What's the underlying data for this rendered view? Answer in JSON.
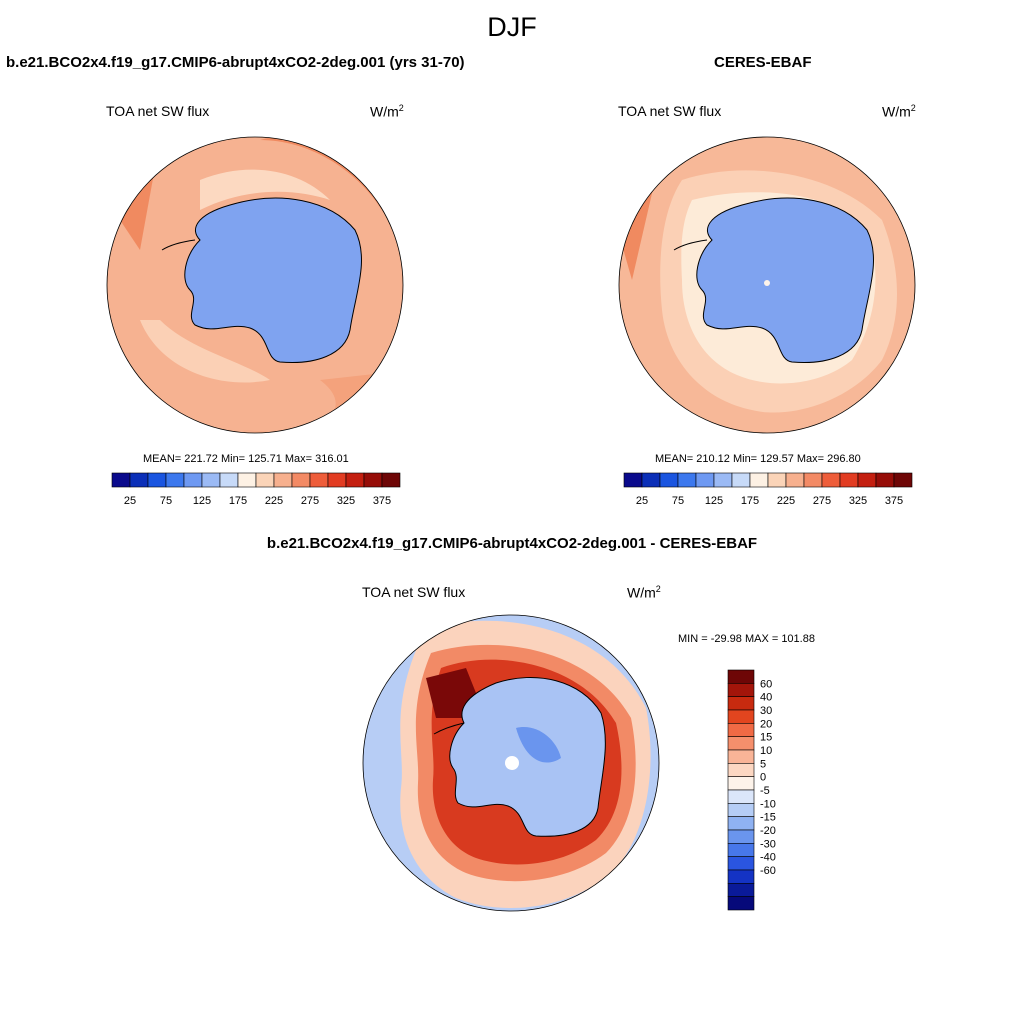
{
  "figure": {
    "title": "DJF"
  },
  "panels": [
    {
      "case_title": "b.e21.BCO2x4.f19_g17.CMIP6-abrupt4xCO2-2deg.001 (yrs 31-70)",
      "variable": "TOA net SW flux",
      "units": "W/m",
      "units_sup": "2",
      "stats": {
        "mean": "221.72",
        "min": "125.71",
        "max": "316.01"
      },
      "stats_text": "MEAN= 221.72  Min= 125.71  Max= 316.01"
    },
    {
      "case_title": "CERES-EBAF",
      "variable": "TOA net SW flux",
      "units": "W/m",
      "units_sup": "2",
      "stats": {
        "mean": "210.12",
        "min": "129.57",
        "max": "296.80"
      },
      "stats_text": "MEAN= 210.12  Min= 129.57  Max= 296.80"
    },
    {
      "case_title": "b.e21.BCO2x4.f19_g17.CMIP6-abrupt4xCO2-2deg.001 - CERES-EBAF",
      "variable": "TOA net SW flux",
      "units": "W/m",
      "units_sup": "2",
      "stats": {
        "min": "-29.98",
        "max": "101.88"
      },
      "stats_text": "MIN = -29.98 MAX = 101.88"
    }
  ],
  "chart_data": [
    {
      "type": "heatmap",
      "projection": "south-polar stereographic",
      "title": "b.e21.BCO2x4.f19_g17.CMIP6-abrupt4xCO2-2deg.001 (yrs 31-70)",
      "field": "TOA net SW flux",
      "units": "W/m2",
      "contour_levels": [
        25,
        50,
        75,
        100,
        125,
        150,
        175,
        200,
        225,
        250,
        275,
        300,
        325,
        350,
        375
      ],
      "colorbar_labels": [
        "25",
        "75",
        "125",
        "175",
        "225",
        "275",
        "325",
        "375"
      ],
      "colorbar_colors": [
        "#0a0a8c",
        "#0b2fb8",
        "#1a55e0",
        "#3c78ee",
        "#6e99f2",
        "#9bbaf5",
        "#c7daf8",
        "#fdf1e4",
        "#fbd4b8",
        "#f7b08e",
        "#f38a65",
        "#ee5d3a",
        "#e23c22",
        "#c41f10",
        "#960d08",
        "#6e0606"
      ],
      "mean": 221.72,
      "min": 125.71,
      "max": 316.01
    },
    {
      "type": "heatmap",
      "projection": "south-polar stereographic",
      "title": "CERES-EBAF",
      "field": "TOA net SW flux",
      "units": "W/m2",
      "contour_levels": [
        25,
        50,
        75,
        100,
        125,
        150,
        175,
        200,
        225,
        250,
        275,
        300,
        325,
        350,
        375
      ],
      "colorbar_labels": [
        "25",
        "75",
        "125",
        "175",
        "225",
        "275",
        "325",
        "375"
      ],
      "colorbar_colors": [
        "#0a0a8c",
        "#0b2fb8",
        "#1a55e0",
        "#3c78ee",
        "#6e99f2",
        "#9bbaf5",
        "#c7daf8",
        "#fdf1e4",
        "#fbd4b8",
        "#f7b08e",
        "#f38a65",
        "#ee5d3a",
        "#e23c22",
        "#c41f10",
        "#960d08",
        "#6e0606"
      ],
      "mean": 210.12,
      "min": 129.57,
      "max": 296.8
    },
    {
      "type": "heatmap",
      "projection": "south-polar stereographic",
      "title": "b.e21.BCO2x4.f19_g17.CMIP6-abrupt4xCO2-2deg.001 - CERES-EBAF",
      "field": "TOA net SW flux",
      "units": "W/m2",
      "contour_levels": [
        -60,
        -40,
        -30,
        -20,
        -15,
        -10,
        -5,
        0,
        5,
        10,
        15,
        20,
        30,
        40,
        60
      ],
      "colorbar_labels": [
        "60",
        "40",
        "30",
        "20",
        "15",
        "10",
        "5",
        "0",
        "-5",
        "-10",
        "-15",
        "-20",
        "-30",
        "-40",
        "-60"
      ],
      "colorbar_colors": [
        "#6e0606",
        "#a3150a",
        "#c82a0f",
        "#e2451f",
        "#f06a45",
        "#f58f6c",
        "#f9b497",
        "#fcd7c2",
        "#fdf3ea",
        "#dbe6fa",
        "#b5cdf6",
        "#8fb2f2",
        "#6a95ee",
        "#4777ea",
        "#2a55e0",
        "#1433c4",
        "#0a1a99",
        "#06097a"
      ],
      "min": -29.98,
      "max": 101.88
    }
  ]
}
